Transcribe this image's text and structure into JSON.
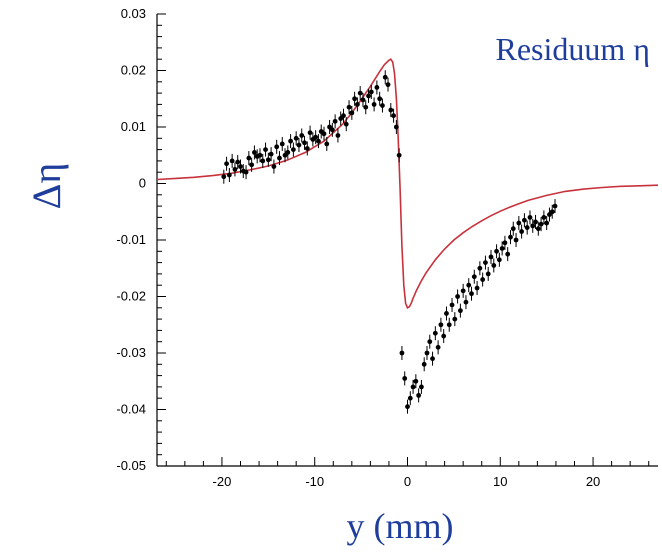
{
  "chart_data": {
    "type": "scatter",
    "title": "",
    "annotation": "Residuum η",
    "xlabel": "y (mm)",
    "ylabel": "Δη",
    "xlim": [
      -27,
      27
    ],
    "ylim": [
      -0.05,
      0.03
    ],
    "x_ticks": [
      -20,
      -10,
      0,
      10,
      20
    ],
    "x_tick_labels": [
      "-20",
      "-10",
      "0",
      "10",
      "20"
    ],
    "y_ticks": [
      -0.05,
      -0.04,
      -0.03,
      -0.02,
      -0.01,
      0,
      0.01,
      0.02,
      0.03
    ],
    "y_tick_labels": [
      "-0.05",
      "-0.04",
      "-0.03",
      "-0.02",
      "-0.01",
      "0",
      "0.01",
      "0.02",
      "0.03"
    ],
    "grid": false,
    "legend": "none",
    "colors": {
      "curve": "#c8323c",
      "points": "#000000",
      "labels": "#1f3e9c"
    },
    "series": [
      {
        "kind": "line",
        "x": [
          -27,
          -25,
          -23,
          -21,
          -19,
          -17,
          -15,
          -13,
          -11,
          -9,
          -7,
          -6,
          -5,
          -4,
          -3,
          -2.5,
          -2,
          -1.8,
          -1.6,
          -1.4,
          -1.2,
          -1.0,
          -0.8,
          -0.6,
          -0.4,
          -0.2,
          0,
          0.2,
          0.4,
          0.6,
          1,
          1.5,
          2,
          3,
          4,
          5,
          6,
          7,
          8,
          9,
          10,
          11,
          12,
          13,
          15,
          17,
          19,
          21,
          23,
          25,
          27
        ],
        "y": [
          0.0007,
          0.0009,
          0.0011,
          0.0014,
          0.0018,
          0.0024,
          0.0031,
          0.0041,
          0.0055,
          0.0075,
          0.0105,
          0.0125,
          0.0148,
          0.0172,
          0.0198,
          0.021,
          0.0218,
          0.022,
          0.0215,
          0.0195,
          0.015,
          0.008,
          -0.001,
          -0.011,
          -0.018,
          -0.0212,
          -0.022,
          -0.0218,
          -0.0212,
          -0.0203,
          -0.0188,
          -0.0172,
          -0.0158,
          -0.0135,
          -0.0116,
          -0.01,
          -0.0087,
          -0.0076,
          -0.0066,
          -0.0057,
          -0.0049,
          -0.0042,
          -0.0036,
          -0.003,
          -0.0021,
          -0.0014,
          -0.001,
          -0.0007,
          -0.0005,
          -0.0004,
          -0.0003
        ]
      },
      {
        "kind": "scatter",
        "x": [
          -19.8,
          -19.5,
          -19.2,
          -18.9,
          -18.6,
          -18.3,
          -18.0,
          -17.7,
          -17.4,
          -17.1,
          -16.8,
          -16.5,
          -16.2,
          -15.9,
          -15.6,
          -15.3,
          -15.0,
          -14.7,
          -14.4,
          -14.1,
          -13.8,
          -13.5,
          -13.2,
          -12.9,
          -12.6,
          -12.3,
          -12.0,
          -11.7,
          -11.4,
          -11.1,
          -10.8,
          -10.5,
          -10.2,
          -9.9,
          -9.6,
          -9.3,
          -9.0,
          -8.7,
          -8.4,
          -8.1,
          -7.8,
          -7.5,
          -7.2,
          -6.9,
          -6.6,
          -6.3,
          -6.0,
          -5.7,
          -5.4,
          -5.1,
          -4.8,
          -4.5,
          -4.2,
          -3.9,
          -3.6,
          -3.3,
          -3.0,
          -2.7,
          -2.4,
          -2.1,
          -1.8,
          -1.5,
          -1.2,
          -0.9,
          -0.6,
          -0.3,
          0.0,
          0.3,
          0.6,
          0.9,
          1.2,
          1.5,
          1.8,
          2.1,
          2.4,
          2.7,
          3.0,
          3.3,
          3.6,
          3.9,
          4.2,
          4.5,
          4.8,
          5.1,
          5.4,
          5.7,
          6.0,
          6.3,
          6.6,
          6.9,
          7.2,
          7.5,
          7.8,
          8.1,
          8.4,
          8.7,
          9.0,
          9.3,
          9.6,
          9.9,
          10.2,
          10.5,
          10.8,
          11.1,
          11.4,
          11.7,
          12.0,
          12.3,
          12.6,
          12.9,
          13.2,
          13.5,
          13.8,
          14.1,
          14.4,
          14.7,
          15.0,
          15.3,
          15.6,
          15.9
        ],
        "y": [
          0.0012,
          0.0035,
          0.0015,
          0.004,
          0.0025,
          0.0038,
          0.003,
          0.0022,
          0.002,
          0.0045,
          0.0033,
          0.0055,
          0.0048,
          0.005,
          0.004,
          0.006,
          0.0042,
          0.0052,
          0.003,
          0.0065,
          0.0045,
          0.007,
          0.005,
          0.0055,
          0.0075,
          0.006,
          0.008,
          0.0068,
          0.0085,
          0.0072,
          0.0062,
          0.009,
          0.0078,
          0.0082,
          0.0075,
          0.0092,
          0.0088,
          0.007,
          0.01,
          0.0095,
          0.011,
          0.0085,
          0.0115,
          0.012,
          0.0105,
          0.0135,
          0.0125,
          0.015,
          0.014,
          0.016,
          0.0148,
          0.0135,
          0.0155,
          0.0162,
          0.014,
          0.017,
          0.015,
          0.0138,
          0.0188,
          0.0175,
          0.013,
          0.012,
          0.01,
          0.005,
          -0.03,
          -0.0345,
          -0.0395,
          -0.038,
          -0.036,
          -0.035,
          -0.0375,
          -0.036,
          -0.032,
          -0.03,
          -0.028,
          -0.031,
          -0.0265,
          -0.029,
          -0.025,
          -0.027,
          -0.023,
          -0.025,
          -0.0215,
          -0.024,
          -0.02,
          -0.0225,
          -0.019,
          -0.021,
          -0.018,
          -0.0195,
          -0.0165,
          -0.0185,
          -0.015,
          -0.017,
          -0.014,
          -0.016,
          -0.013,
          -0.0145,
          -0.012,
          -0.0135,
          -0.0115,
          -0.0105,
          -0.0125,
          -0.0095,
          -0.008,
          -0.01,
          -0.007,
          -0.0085,
          -0.0065,
          -0.0078,
          -0.006,
          -0.0075,
          -0.0068,
          -0.008,
          -0.0072,
          -0.006,
          -0.007,
          -0.0055,
          -0.005,
          -0.004
        ]
      }
    ]
  }
}
